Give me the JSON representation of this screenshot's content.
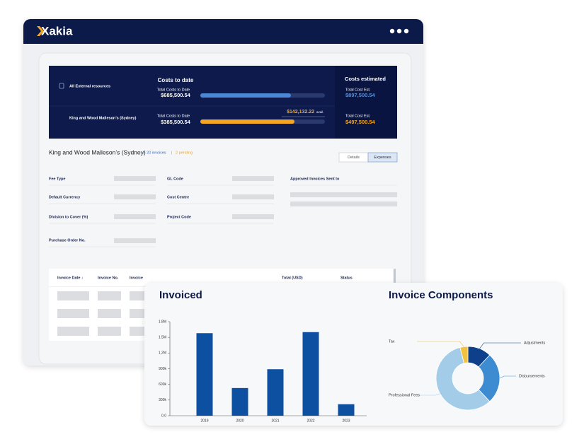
{
  "header": {
    "logo": "Xakia"
  },
  "summary": {
    "resource_label": "All External resources",
    "costs_title": "Costs to date",
    "estimated_title": "Costs estimated",
    "rows": [
      {
        "total_label": "Total Costs to Date",
        "total": "$685,500.54",
        "est_label": "Total Cost Est.",
        "est": "$897,500.54"
      },
      {
        "name": "King and Wood Malleson’s (Sydney)",
        "total_label": "Total Costs to Date",
        "total": "$385,500.54",
        "available": "$142,132.22",
        "available_label": "avail.",
        "est_label": "Total Cost Est.",
        "est": "$497,500.54"
      }
    ]
  },
  "vendor": {
    "title": "King and Wood Malleson’s (Sydney)",
    "invoices": "✓ 20 invoices",
    "separator": "|",
    "pending": "2 pending"
  },
  "tabs": [
    "Details",
    "Expenses"
  ],
  "fields": [
    "Fee Type",
    "Default Currency",
    "Division to Cover (%)",
    "Purchase Order No.",
    "GL Code",
    "Cost Centre",
    "Project Code",
    "Approved Invoices Sent to"
  ],
  "table": {
    "columns": [
      "Invoice Date ↓",
      "Invoice No.",
      "Invoice",
      "Total (USD)",
      "Status"
    ]
  },
  "chart_data": [
    {
      "type": "bar",
      "title": "Invoiced",
      "categories": [
        "2019",
        "2020",
        "2021",
        "2022",
        "2023"
      ],
      "values": [
        1580000,
        530000,
        890000,
        1600000,
        220000
      ],
      "color": "#0d4fa0",
      "ylim": [
        0,
        1800000
      ],
      "yticks": [
        {
          "value": 0,
          "label": "0.0"
        },
        {
          "value": 300000,
          "label": "300k"
        },
        {
          "value": 600000,
          "label": "600k"
        },
        {
          "value": 900000,
          "label": "900k"
        },
        {
          "value": 1200000,
          "label": "1.2M"
        },
        {
          "value": 1500000,
          "label": "1.5M"
        },
        {
          "value": 1800000,
          "label": "1.8M"
        }
      ]
    },
    {
      "type": "pie",
      "title": "Invoice Components",
      "categories": [
        "Adjustments",
        "Disbursements",
        "Professional Fees",
        "Tax"
      ],
      "values": [
        12,
        26,
        58,
        4
      ],
      "colors": [
        "#0d3f8a",
        "#3d8bd0",
        "#a3cce9",
        "#f2c240"
      ]
    }
  ]
}
